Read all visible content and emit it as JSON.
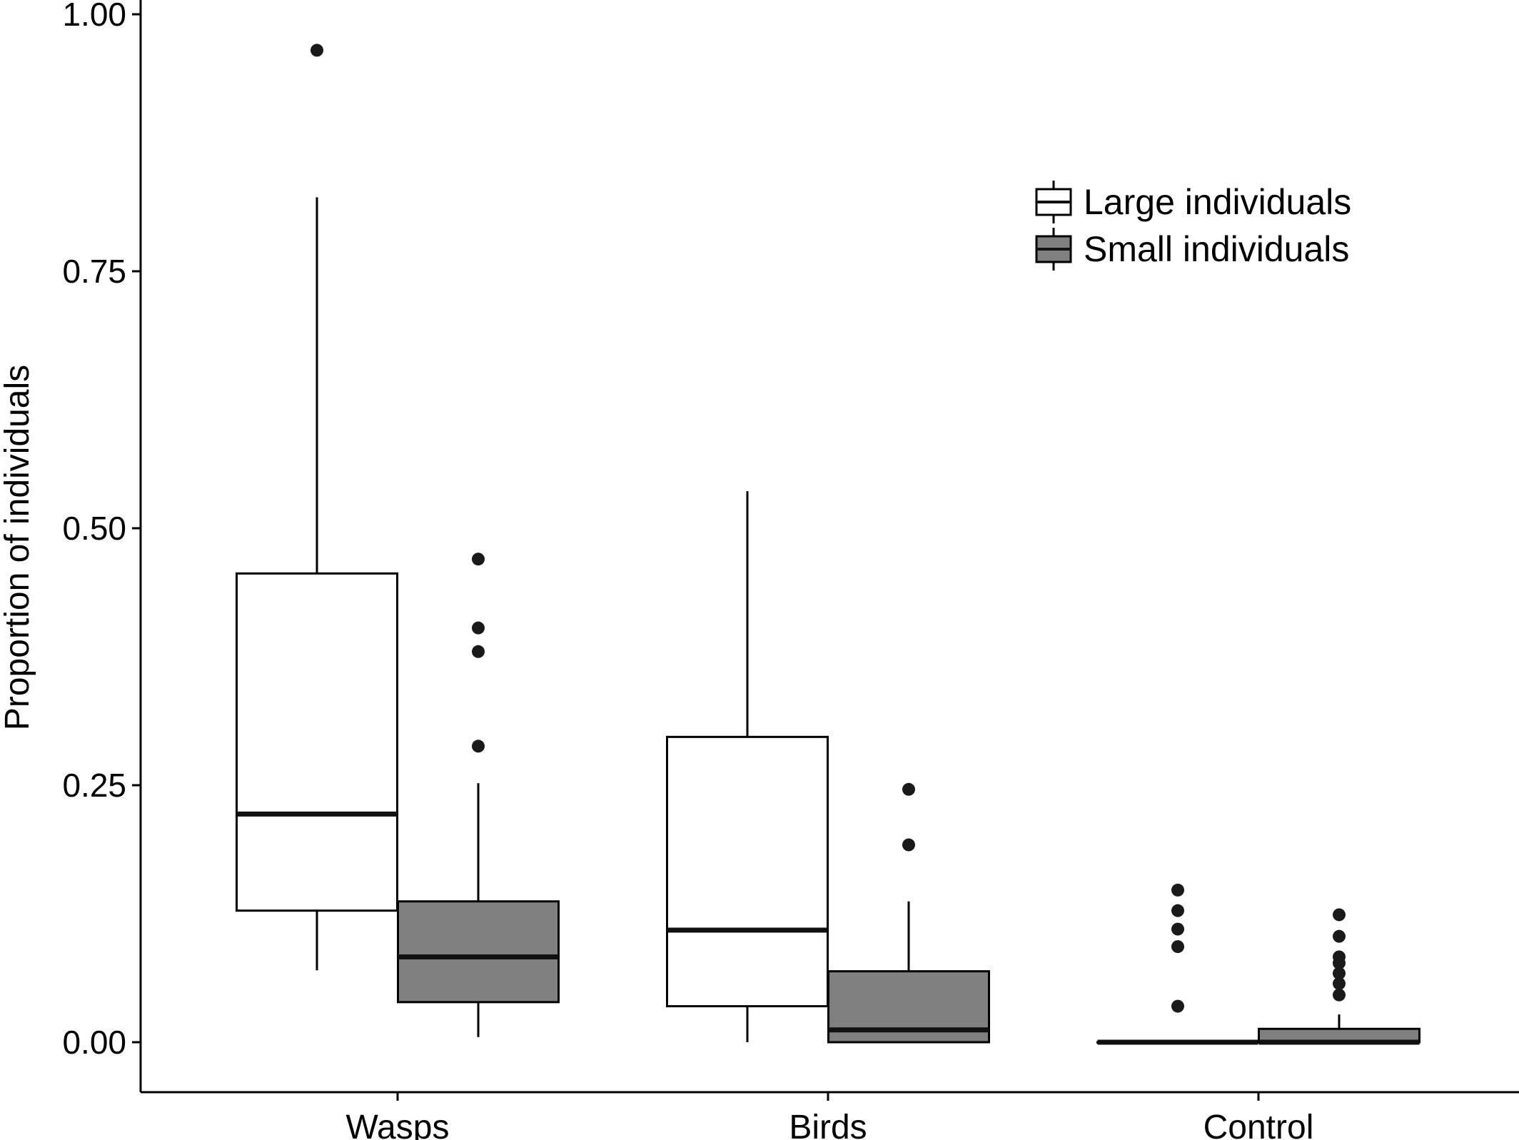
{
  "chart_data": {
    "type": "boxplot",
    "title": "",
    "xlabel": "",
    "ylabel": "Proportion of individuals",
    "ylim": [
      -0.05,
      1.0
    ],
    "yticks": [
      0.0,
      0.25,
      0.5,
      0.75,
      1.0
    ],
    "ytick_labels": [
      "0.00",
      "0.25",
      "0.50",
      "0.75",
      "1.00"
    ],
    "categories": [
      "Wasps",
      "Birds",
      "Control"
    ],
    "grid": false,
    "legend_position": "top-right",
    "series": [
      {
        "name": "Large individuals",
        "fill": "#ffffff",
        "boxes": [
          {
            "category": "Wasps",
            "whisker_low": 0.07,
            "q1": 0.128,
            "median": 0.222,
            "q3": 0.456,
            "whisker_high": 0.822,
            "outliers": [
              0.965
            ]
          },
          {
            "category": "Birds",
            "whisker_low": 0.0,
            "q1": 0.035,
            "median": 0.109,
            "q3": 0.297,
            "whisker_high": 0.536,
            "outliers": []
          },
          {
            "category": "Control",
            "whisker_low": 0.0,
            "q1": 0.0,
            "median": 0.0,
            "q3": 0.0,
            "whisker_high": 0.0,
            "outliers": [
              0.035,
              0.093,
              0.11,
              0.128,
              0.148
            ]
          }
        ]
      },
      {
        "name": "Small individuals",
        "fill": "#808080",
        "boxes": [
          {
            "category": "Wasps",
            "whisker_low": 0.005,
            "q1": 0.039,
            "median": 0.083,
            "q3": 0.137,
            "whisker_high": 0.252,
            "outliers": [
              0.288,
              0.38,
              0.403,
              0.47
            ]
          },
          {
            "category": "Birds",
            "whisker_low": 0.0,
            "q1": 0.0,
            "median": 0.012,
            "q3": 0.069,
            "whisker_high": 0.137,
            "outliers": [
              0.192,
              0.246
            ]
          },
          {
            "category": "Control",
            "whisker_low": 0.0,
            "q1": 0.0,
            "median": 0.0,
            "q3": 0.013,
            "whisker_high": 0.027,
            "outliers": [
              0.046,
              0.057,
              0.067,
              0.077,
              0.083,
              0.103,
              0.124
            ]
          }
        ]
      }
    ]
  }
}
